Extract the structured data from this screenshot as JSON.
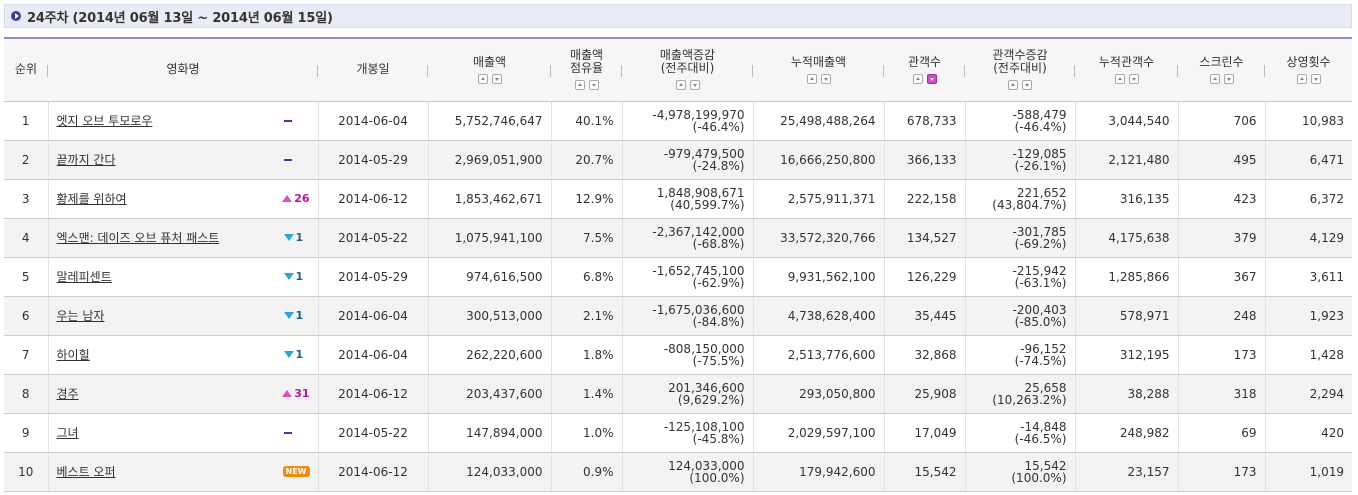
{
  "title": "24주차 (2014년 06월 13일 ~ 2014년 06월 15일)",
  "colors": {
    "accent": "#8b8fc9",
    "up": "#e14dc5",
    "down": "#2aa6d6",
    "new": "#f08a12"
  },
  "columns": [
    {
      "label": "순위",
      "sort": false
    },
    {
      "label": "영화명",
      "sort": false
    },
    {
      "label": "개봉일",
      "sort": false
    },
    {
      "label": "매출액",
      "sort": true
    },
    {
      "label": "매출액\n점유율",
      "sort": true
    },
    {
      "label": "매출액증감\n(전주대비)",
      "sort": true
    },
    {
      "label": "누적매출액",
      "sort": true
    },
    {
      "label": "관객수",
      "sort": true,
      "active": true
    },
    {
      "label": "관객수증감\n(전주대비)",
      "sort": true
    },
    {
      "label": "누적관객수",
      "sort": true
    },
    {
      "label": "스크린수",
      "sort": true
    },
    {
      "label": "상영횟수",
      "sort": true
    }
  ],
  "rows": [
    {
      "rank": "1",
      "title": "엣지 오브 투모로우",
      "change": {
        "type": "same",
        "value": ""
      },
      "open": "2014-06-04",
      "sales": "5,752,746,647",
      "share": "40.1%",
      "sales_diff": "-4,978,199,970",
      "sales_diff_pct": "(-46.4%)",
      "cum_sales": "25,498,488,264",
      "audience": "678,733",
      "aud_diff": "-588,479",
      "aud_diff_pct": "(-46.4%)",
      "cum_aud": "3,044,540",
      "screens": "706",
      "shows": "10,983"
    },
    {
      "rank": "2",
      "title": "끝까지 간다",
      "change": {
        "type": "same",
        "value": ""
      },
      "open": "2014-05-29",
      "sales": "2,969,051,900",
      "share": "20.7%",
      "sales_diff": "-979,479,500",
      "sales_diff_pct": "(-24.8%)",
      "cum_sales": "16,666,250,800",
      "audience": "366,133",
      "aud_diff": "-129,085",
      "aud_diff_pct": "(-26.1%)",
      "cum_aud": "2,121,480",
      "screens": "495",
      "shows": "6,471"
    },
    {
      "rank": "3",
      "title": "황제를 위하여",
      "change": {
        "type": "up",
        "value": "26"
      },
      "open": "2014-06-12",
      "sales": "1,853,462,671",
      "share": "12.9%",
      "sales_diff": "1,848,908,671",
      "sales_diff_pct": "(40,599.7%)",
      "cum_sales": "2,575,911,371",
      "audience": "222,158",
      "aud_diff": "221,652",
      "aud_diff_pct": "(43,804.7%)",
      "cum_aud": "316,135",
      "screens": "423",
      "shows": "6,372"
    },
    {
      "rank": "4",
      "title": "엑스맨: 데이즈 오브 퓨처 패스트",
      "change": {
        "type": "down",
        "value": "1"
      },
      "open": "2014-05-22",
      "sales": "1,075,941,100",
      "share": "7.5%",
      "sales_diff": "-2,367,142,000",
      "sales_diff_pct": "(-68.8%)",
      "cum_sales": "33,572,320,766",
      "audience": "134,527",
      "aud_diff": "-301,785",
      "aud_diff_pct": "(-69.2%)",
      "cum_aud": "4,175,638",
      "screens": "379",
      "shows": "4,129"
    },
    {
      "rank": "5",
      "title": "말레피센트",
      "change": {
        "type": "down",
        "value": "1"
      },
      "open": "2014-05-29",
      "sales": "974,616,500",
      "share": "6.8%",
      "sales_diff": "-1,652,745,100",
      "sales_diff_pct": "(-62.9%)",
      "cum_sales": "9,931,562,100",
      "audience": "126,229",
      "aud_diff": "-215,942",
      "aud_diff_pct": "(-63.1%)",
      "cum_aud": "1,285,866",
      "screens": "367",
      "shows": "3,611"
    },
    {
      "rank": "6",
      "title": "우는 남자",
      "change": {
        "type": "down",
        "value": "1"
      },
      "open": "2014-06-04",
      "sales": "300,513,000",
      "share": "2.1%",
      "sales_diff": "-1,675,036,600",
      "sales_diff_pct": "(-84.8%)",
      "cum_sales": "4,738,628,400",
      "audience": "35,445",
      "aud_diff": "-200,403",
      "aud_diff_pct": "(-85.0%)",
      "cum_aud": "578,971",
      "screens": "248",
      "shows": "1,923"
    },
    {
      "rank": "7",
      "title": "하이힐",
      "change": {
        "type": "down",
        "value": "1"
      },
      "open": "2014-06-04",
      "sales": "262,220,600",
      "share": "1.8%",
      "sales_diff": "-808,150,000",
      "sales_diff_pct": "(-75.5%)",
      "cum_sales": "2,513,776,600",
      "audience": "32,868",
      "aud_diff": "-96,152",
      "aud_diff_pct": "(-74.5%)",
      "cum_aud": "312,195",
      "screens": "173",
      "shows": "1,428"
    },
    {
      "rank": "8",
      "title": "경주",
      "change": {
        "type": "up",
        "value": "31"
      },
      "open": "2014-06-12",
      "sales": "203,437,600",
      "share": "1.4%",
      "sales_diff": "201,346,600",
      "sales_diff_pct": "(9,629.2%)",
      "cum_sales": "293,050,800",
      "audience": "25,908",
      "aud_diff": "25,658",
      "aud_diff_pct": "(10,263.2%)",
      "cum_aud": "38,288",
      "screens": "318",
      "shows": "2,294"
    },
    {
      "rank": "9",
      "title": "그녀",
      "change": {
        "type": "same",
        "value": ""
      },
      "open": "2014-05-22",
      "sales": "147,894,000",
      "share": "1.0%",
      "sales_diff": "-125,108,100",
      "sales_diff_pct": "(-45.8%)",
      "cum_sales": "2,029,597,100",
      "audience": "17,049",
      "aud_diff": "-14,848",
      "aud_diff_pct": "(-46.5%)",
      "cum_aud": "248,982",
      "screens": "69",
      "shows": "420"
    },
    {
      "rank": "10",
      "title": "베스트 오퍼",
      "change": {
        "type": "new",
        "value": "NEW"
      },
      "open": "2014-06-12",
      "sales": "124,033,000",
      "share": "0.9%",
      "sales_diff": "124,033,000",
      "sales_diff_pct": "(100.0%)",
      "cum_sales": "179,942,600",
      "audience": "15,542",
      "aud_diff": "15,542",
      "aud_diff_pct": "(100.0%)",
      "cum_aud": "23,157",
      "screens": "173",
      "shows": "1,019"
    }
  ]
}
